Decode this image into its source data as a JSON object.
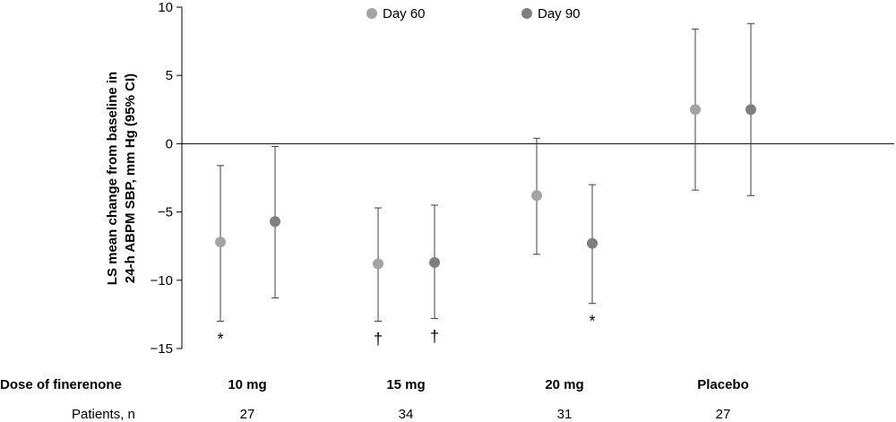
{
  "chart_data": {
    "type": "scatter",
    "title": "",
    "ylabel_line1": "LS mean change from baseline in",
    "ylabel_line2": "24-h ABPM SBP, mm Hg (95% CI)",
    "ylim": [
      -15,
      10
    ],
    "yticks": [
      10,
      5,
      0,
      -5,
      -10,
      -15
    ],
    "ytick_labels": [
      "10",
      "5",
      "0",
      "−5",
      "−10",
      "−15"
    ],
    "reference_line": 0,
    "grid": false,
    "legend_position": "top-center",
    "categories": [
      "10 mg",
      "15 mg",
      "20 mg",
      "Placebo"
    ],
    "series": [
      {
        "name": "Day 60",
        "color": "#a3a3a3",
        "values": [
          -7.2,
          -8.8,
          -3.8,
          2.5
        ],
        "ci_lower": [
          -13.0,
          -13.0,
          -8.1,
          -3.4
        ],
        "ci_upper": [
          -1.6,
          -4.7,
          0.4,
          8.4
        ],
        "markers": [
          "*",
          "†",
          "",
          ""
        ]
      },
      {
        "name": "Day 90",
        "color": "#7f7f7f",
        "values": [
          -5.7,
          -8.7,
          -7.3,
          2.5
        ],
        "ci_lower": [
          -11.3,
          -12.8,
          -11.7,
          -3.8
        ],
        "ci_upper": [
          -0.2,
          -4.5,
          -3.0,
          8.8
        ],
        "markers": [
          "",
          "†",
          "*",
          ""
        ]
      }
    ]
  },
  "table": {
    "dose_label": "Dose of finerenone",
    "patients_label": "Patients, n",
    "patients": [
      "27",
      "34",
      "31",
      "27"
    ]
  },
  "colors": {
    "axis": "#000000",
    "errorbar": "#404040"
  }
}
